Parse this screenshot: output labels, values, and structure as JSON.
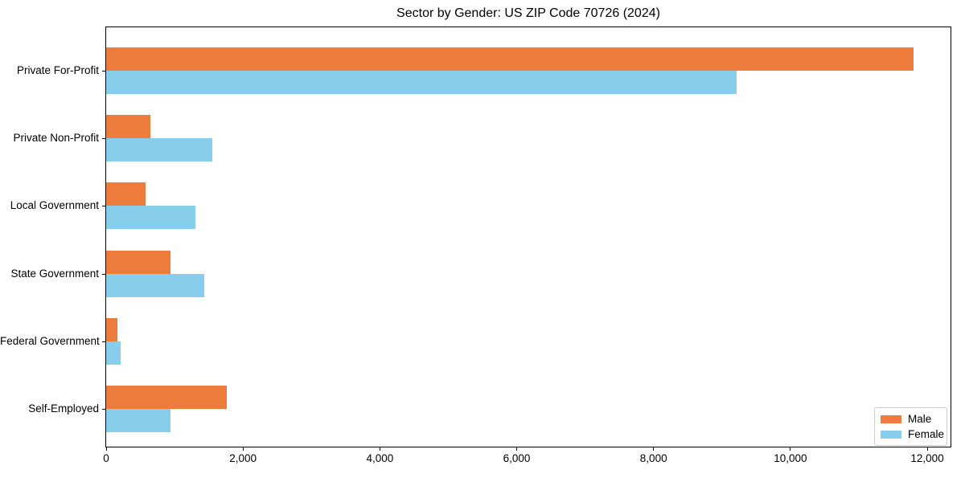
{
  "figure": {
    "background": "#ffffff",
    "axis_color": "#000000",
    "legend_border_color": "#cccccc"
  },
  "chart_data": {
    "type": "bar",
    "orientation": "horizontal",
    "title": "Sector by Gender: US ZIP Code 70726 (2024)",
    "categories": [
      "Private For-Profit",
      "Private Non-Profit",
      "Local Government",
      "State Government",
      "Federal Government",
      "Self-Employed"
    ],
    "series": [
      {
        "name": "Male",
        "color": "#ec7b3c",
        "values": [
          11800,
          650,
          570,
          940,
          170,
          1760
        ]
      },
      {
        "name": "Female",
        "color": "#87ceeb",
        "values": [
          9210,
          1550,
          1300,
          1430,
          210,
          940
        ]
      }
    ],
    "xlabel": "",
    "ylabel": "",
    "xlim": [
      0,
      12340
    ],
    "xticks": [
      0,
      2000,
      4000,
      6000,
      8000,
      10000,
      12000
    ],
    "xtick_labels": [
      "0",
      "2,000",
      "4,000",
      "6,000",
      "8,000",
      "10,000",
      "12,000"
    ],
    "grid": false,
    "legend": {
      "position": "lower right",
      "entries": [
        "Male",
        "Female"
      ]
    }
  }
}
